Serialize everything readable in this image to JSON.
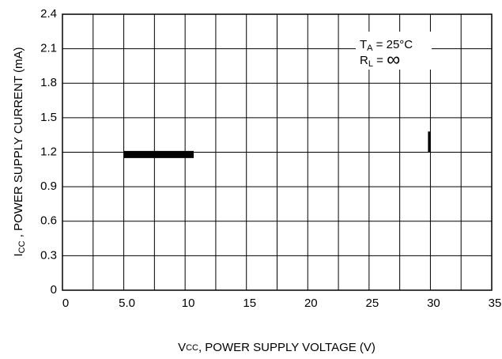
{
  "chart_data": {
    "type": "line",
    "xlabel": {
      "main": "V",
      "sub": "CC",
      "rest": ", POWER SUPPLY VOLTAGE (V)"
    },
    "ylabel": {
      "main": "I",
      "sub": "CC",
      "rest": " , POWER SUPPLY CURRENT (mA)"
    },
    "annotations": [
      {
        "main": "T",
        "sub": "A",
        "rest": " = 25°C"
      },
      {
        "main": "R",
        "sub": "L",
        "rest": " = ",
        "symbol": "∞"
      }
    ],
    "xlim": [
      0,
      35
    ],
    "xticks": [
      0,
      {
        "value": 5,
        "label": "5.0"
      },
      10,
      15,
      20,
      25,
      30,
      35
    ],
    "xminor": [
      2.5,
      7.5,
      12.5,
      17.5,
      22.5,
      27.5,
      32.5
    ],
    "ylim": [
      0,
      2.4
    ],
    "yticks": [
      0,
      0.3,
      0.6,
      0.9,
      1.2,
      1.5,
      1.8,
      2.1,
      2.4
    ],
    "grid": true,
    "series": [
      {
        "color": "#000000",
        "width": 9,
        "x": [
          5.0,
          10.7
        ],
        "values": [
          1.18,
          1.18
        ]
      },
      {
        "color": "#000000",
        "width": 3,
        "x": [
          29.9,
          29.9
        ],
        "values": [
          1.2,
          1.38
        ]
      }
    ]
  }
}
